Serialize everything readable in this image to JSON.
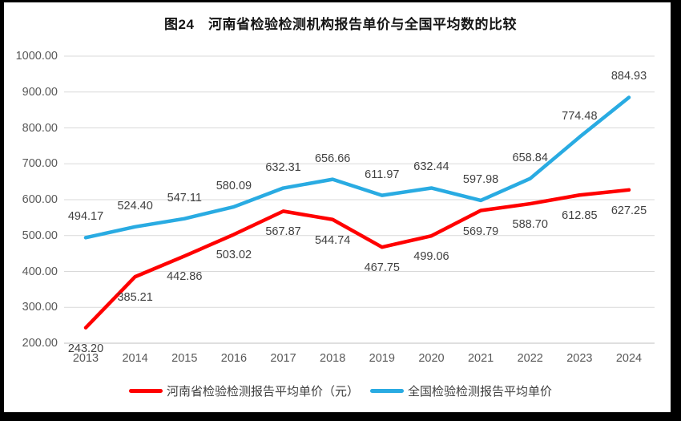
{
  "window": {
    "frame_color": "#000000",
    "canvas_color": "#ffffff"
  },
  "title": "图24　河南省检验检测机构报告单价与全国平均数的比较",
  "chart_data": {
    "type": "line",
    "title": "图24　河南省检验检测机构报告单价与全国平均数的比较",
    "categories": [
      "2013",
      "2014",
      "2015",
      "2016",
      "2017",
      "2018",
      "2019",
      "2020",
      "2021",
      "2022",
      "2023",
      "2024"
    ],
    "series": [
      {
        "name": "河南省检验检测报告平均单价（元）",
        "color": "#ff0000",
        "label_side": "below",
        "values": [
          243.2,
          385.21,
          442.86,
          503.02,
          567.87,
          544.74,
          467.75,
          499.06,
          569.79,
          588.7,
          612.85,
          627.25
        ]
      },
      {
        "name": "全国检验检测报告平均单价",
        "color": "#29abe2",
        "label_side": "above",
        "values": [
          494.17,
          524.4,
          547.11,
          580.09,
          632.31,
          656.66,
          611.97,
          632.44,
          597.98,
          658.84,
          774.48,
          884.93
        ]
      }
    ],
    "xlabel": "",
    "ylabel": "",
    "ylim": [
      200,
      1000
    ],
    "ytick_step": 100,
    "ytick_decimals": 2,
    "grid": true,
    "gridline_color": "#d9d9d9",
    "axis_line_color": "#bfbfbf",
    "data_label_color": "#404040",
    "axis_text_color": "#595959",
    "legend_position": "bottom"
  }
}
